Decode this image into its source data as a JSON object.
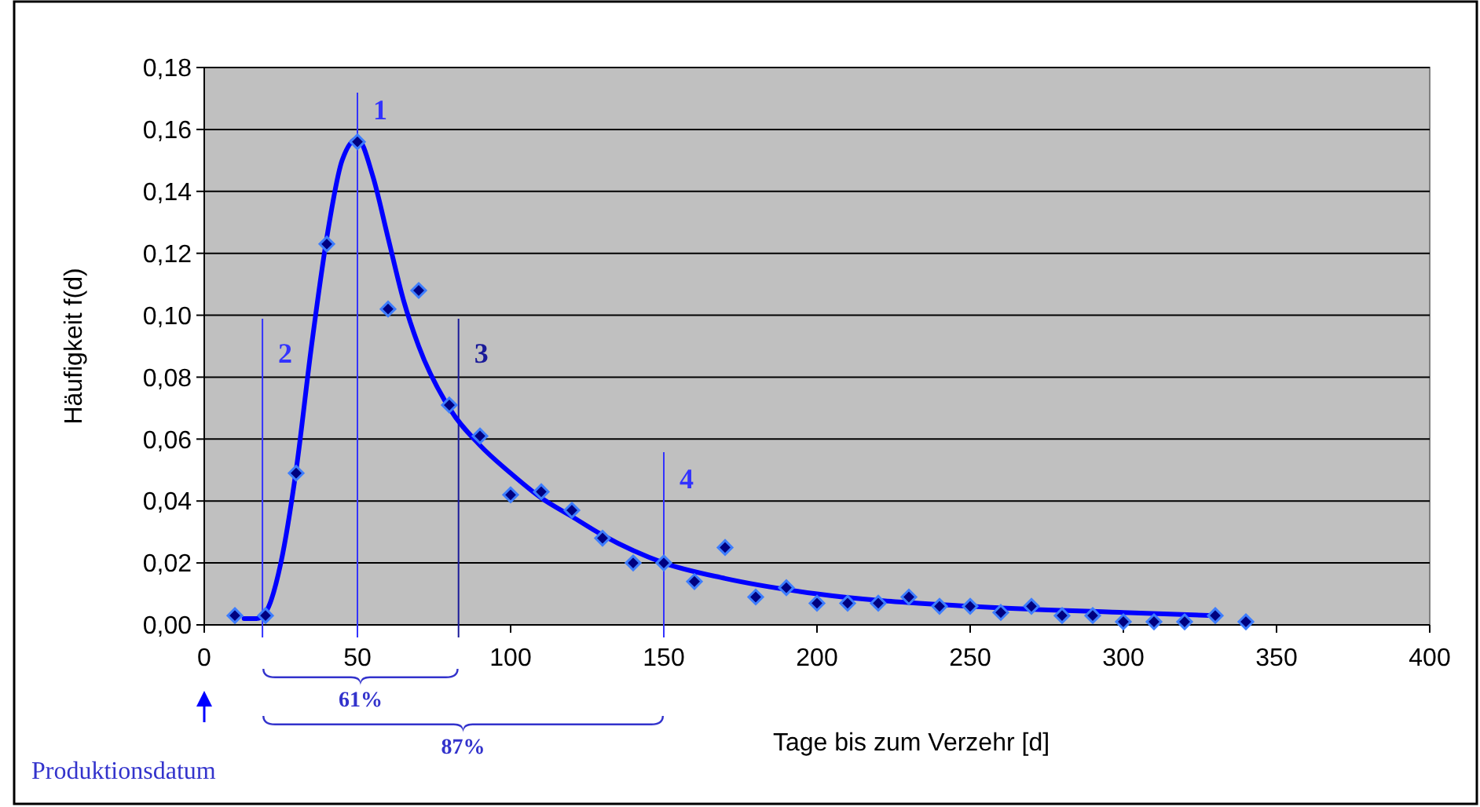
{
  "chart_data": {
    "type": "scatter",
    "xlabel": "Tage bis zum Verzehr [d]",
    "ylabel": "Häufigkeit f(d)",
    "xlim": [
      0,
      400
    ],
    "xticks": [
      0,
      50,
      100,
      150,
      200,
      250,
      300,
      350,
      400
    ],
    "ylim": [
      0,
      0.18
    ],
    "yticks": [
      {
        "value": 0,
        "label": "0,00"
      },
      {
        "value": 0.02,
        "label": "0,02"
      },
      {
        "value": 0.04,
        "label": "0,04"
      },
      {
        "value": 0.06,
        "label": "0,06"
      },
      {
        "value": 0.08,
        "label": "0,08"
      },
      {
        "value": 0.1,
        "label": "0,10"
      },
      {
        "value": 0.12,
        "label": "0,12"
      },
      {
        "value": 0.14,
        "label": "0,14"
      },
      {
        "value": 0.16,
        "label": "0,16"
      },
      {
        "value": 0.18,
        "label": "0,18"
      }
    ],
    "grid": "y",
    "series": [
      {
        "marker": "diamond",
        "color": "#000080",
        "x": [
          10,
          20,
          30,
          40,
          50,
          60,
          70,
          80,
          90,
          100,
          110,
          120,
          130,
          140,
          150,
          160,
          170,
          180,
          190,
          200,
          210,
          220,
          230,
          240,
          250,
          260,
          270,
          280,
          290,
          300,
          310,
          320,
          330,
          340
        ],
        "values": [
          0.003,
          0.003,
          0.049,
          0.123,
          0.156,
          0.102,
          0.108,
          0.071,
          0.061,
          0.042,
          0.043,
          0.037,
          0.028,
          0.02,
          0.02,
          0.014,
          0.025,
          0.009,
          0.012,
          0.007,
          0.007,
          0.007,
          0.009,
          0.006,
          0.006,
          0.004,
          0.006,
          0.003,
          0.003,
          0.001,
          0.001,
          0.001,
          0.003,
          0.001
        ]
      },
      {
        "type": "line",
        "marker": "none",
        "line_style": "solid",
        "color": "#0000ff",
        "x": [
          13,
          17,
          20,
          25,
          30,
          35,
          40,
          45,
          50,
          55,
          60,
          65,
          70,
          80,
          90,
          100,
          110,
          120,
          130,
          140,
          150,
          170,
          200,
          250,
          300,
          330
        ],
        "values": [
          0.002,
          0.002,
          0.004,
          0.02,
          0.05,
          0.09,
          0.125,
          0.15,
          0.157,
          0.145,
          0.125,
          0.105,
          0.09,
          0.07,
          0.058,
          0.049,
          0.041,
          0.035,
          0.029,
          0.024,
          0.02,
          0.015,
          0.01,
          0.006,
          0.004,
          0.003
        ]
      }
    ],
    "ref_lines": [
      {
        "axis": "x",
        "value": 50,
        "color": "#3333ff"
      },
      {
        "axis": "x",
        "value": 19,
        "color": "#3333ff"
      },
      {
        "axis": "x",
        "value": 83,
        "color": "#1a1a99"
      },
      {
        "axis": "x",
        "value": 150,
        "color": "#3333ff"
      }
    ],
    "annotations": [
      "1",
      "2",
      "3",
      "4",
      "61%",
      "87%",
      "Produktionsdatum"
    ]
  }
}
